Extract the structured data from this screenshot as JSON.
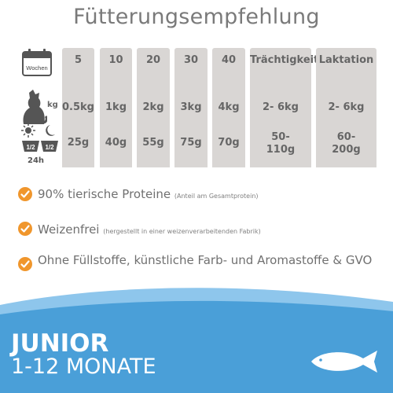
{
  "title": "Fütterungsempfehlung",
  "weeks_label": "Wochen",
  "kg_label": "kg",
  "portion_labels": [
    "1/2",
    "1/2"
  ],
  "h24_label": "24h",
  "columns": [
    {
      "header": "5",
      "kg": "0.5kg",
      "grams": "25g"
    },
    {
      "header": "10",
      "kg": "1kg",
      "grams": "40g"
    },
    {
      "header": "20",
      "kg": "2kg",
      "grams": "55g"
    },
    {
      "header": "30",
      "kg": "3kg",
      "grams": "75g"
    },
    {
      "header": "40",
      "kg": "4kg",
      "grams": "70g"
    },
    {
      "header": "Trächtigkeit",
      "kg": "2- 6kg",
      "grams": "50-\n110g"
    },
    {
      "header": "Laktation",
      "kg": "2- 6kg",
      "grams": "60-\n200g"
    }
  ],
  "features": [
    {
      "main": "90% tierische Proteine",
      "note": "(Anteil am Gesamtprotein)"
    },
    {
      "main": "Weizenfrei",
      "note": "(hergestellt in einer weizenverarbeitenden Fabrik)"
    },
    {
      "main": "Ohne Füllstoffe, künstliche Farb- und Aromastoffe & GVO",
      "note": ""
    }
  ],
  "banner": {
    "line1": "JUNIOR",
    "line2": "1-12 MONATE"
  },
  "colors": {
    "accent_check": "#f0962c",
    "banner_blue": "#4a9fd8",
    "column_bg": "#d9d6d4"
  }
}
